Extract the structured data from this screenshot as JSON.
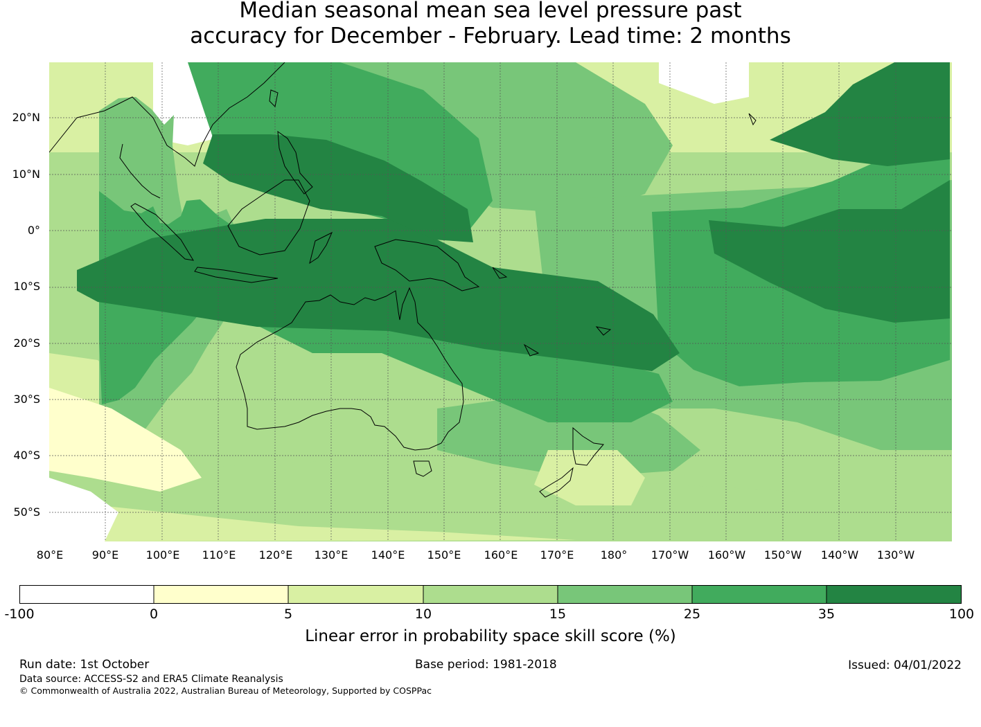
{
  "title": {
    "line1": "Median seasonal mean sea level pressure past",
    "line2": "accuracy for December - February. Lead time: 2 months"
  },
  "map": {
    "lat_labels": [
      "20°N",
      "10°N",
      "0°",
      "10°S",
      "20°S",
      "30°S",
      "40°S",
      "50°S"
    ],
    "lon_labels": [
      "80°E",
      "90°E",
      "100°E",
      "110°E",
      "120°E",
      "130°E",
      "140°E",
      "150°E",
      "160°E",
      "170°E",
      "180°",
      "170°W",
      "160°W",
      "150°W",
      "140°W",
      "130°W"
    ],
    "colors": {
      "background_region": "#ffffe5",
      "coastline": "#000000",
      "gridline": "#555555"
    },
    "regions": {
      "skill_25_35": [
        [
          72,
          186
        ],
        [
          88,
          198
        ],
        [
          108,
          214
        ],
        [
          133,
          218
        ],
        [
          150,
          208
        ],
        [
          160,
          232
        ],
        [
          172,
          234
        ],
        [
          190,
          222
        ],
        [
          198,
          200
        ],
        [
          218,
          198
        ],
        [
          244,
          222
        ],
        [
          270,
          240
        ],
        [
          254,
          304
        ],
        [
          228,
          350
        ],
        [
          206,
          376
        ],
        [
          180,
          402
        ],
        [
          152,
          430
        ],
        [
          124,
          470
        ],
        [
          100,
          488
        ],
        [
          76,
          494
        ],
        [
          72,
          400
        ]
      ],
      "skill_15_25": [
        [
          72,
          70
        ],
        [
          100,
          52
        ],
        [
          125,
          50
        ],
        [
          148,
          68
        ],
        [
          166,
          90
        ],
        [
          180,
          76
        ],
        [
          178,
          120
        ],
        [
          186,
          186
        ],
        [
          194,
          230
        ],
        [
          222,
          226
        ],
        [
          256,
          212
        ],
        [
          272,
          246
        ],
        [
          280,
          268
        ],
        [
          300,
          284
        ],
        [
          312,
          320
        ],
        [
          268,
          346
        ],
        [
          248,
          380
        ],
        [
          228,
          410
        ],
        [
          206,
          448
        ],
        [
          174,
          482
        ],
        [
          140,
          528
        ],
        [
          110,
          562
        ],
        [
          82,
          584
        ],
        [
          72,
          588
        ]
      ],
      "skill_10_15_south": [
        [
          72,
          560
        ],
        [
          240,
          584
        ],
        [
          480,
          572
        ],
        [
          730,
          600
        ],
        [
          1080,
          620
        ],
        [
          1300,
          620
        ],
        [
          1300,
          690
        ],
        [
          72,
          690
        ]
      ],
      "skill_5_10_south": [
        [
          72,
          640
        ],
        [
          360,
          670
        ],
        [
          560,
          678
        ],
        [
          760,
          690
        ],
        [
          72,
          692
        ]
      ],
      "skill_0_5_south": [
        [
          72,
          660
        ],
        [
          240,
          690
        ],
        [
          72,
          692
        ]
      ],
      "skill_35_100_main": [
        [
          40,
          300
        ],
        [
          148,
          254
        ],
        [
          312,
          226
        ],
        [
          500,
          226
        ],
        [
          640,
          296
        ],
        [
          792,
          316
        ],
        [
          872,
          364
        ],
        [
          910,
          420
        ],
        [
          870,
          446
        ],
        [
          770,
          432
        ],
        [
          628,
          414
        ],
        [
          490,
          388
        ],
        [
          300,
          382
        ],
        [
          150,
          358
        ],
        [
          70,
          346
        ],
        [
          40,
          330
        ]
      ],
      "skill_35_100_central": [
        [
          236,
          104
        ],
        [
          320,
          104
        ],
        [
          400,
          112
        ],
        [
          484,
          142
        ],
        [
          538,
          172
        ],
        [
          604,
          212
        ],
        [
          612,
          260
        ],
        [
          556,
          256
        ],
        [
          480,
          222
        ],
        [
          392,
          212
        ],
        [
          316,
          190
        ],
        [
          260,
          172
        ],
        [
          222,
          146
        ]
      ],
      "skill_35_100_east": [
        [
          952,
          228
        ],
        [
          1060,
          238
        ],
        [
          1140,
          212
        ],
        [
          1230,
          212
        ],
        [
          1300,
          170
        ],
        [
          1300,
          370
        ],
        [
          1220,
          376
        ],
        [
          1120,
          356
        ],
        [
          1040,
          318
        ],
        [
          960,
          276
        ]
      ],
      "skill_35_100_ne": [
        [
          1040,
          112
        ],
        [
          1120,
          72
        ],
        [
          1160,
          32
        ],
        [
          1220,
          0
        ],
        [
          1300,
          0
        ],
        [
          1300,
          140
        ],
        [
          1210,
          150
        ],
        [
          1130,
          140
        ]
      ],
      "skill_25_35_east": [
        [
          870,
          216
        ],
        [
          1000,
          210
        ],
        [
          1130,
          172
        ],
        [
          1220,
          132
        ],
        [
          1300,
          90
        ],
        [
          1300,
          430
        ],
        [
          1200,
          460
        ],
        [
          1090,
          462
        ],
        [
          996,
          468
        ],
        [
          930,
          444
        ],
        [
          880,
          400
        ]
      ]
    }
  },
  "colorbar": {
    "ticks": [
      "-100",
      "0",
      "5",
      "10",
      "15",
      "25",
      "35",
      "100"
    ],
    "colors": [
      "#ffffff",
      "#ffffcc",
      "#d9f0a3",
      "#addd8e",
      "#78c679",
      "#41ab5d",
      "#238443"
    ],
    "label": "Linear error in probability space skill score (%)"
  },
  "footer": {
    "run_date": "Run date: 1st October",
    "base_period": "Base period: 1981-2018",
    "issued": "Issued: 04/01/2022",
    "data_source": "Data source: ACCESS-S2 and ERA5 Climate Reanalysis",
    "copyright": "© Commonwealth of Australia 2022, Australian Bureau of Meteorology, Supported by COSPPac"
  }
}
